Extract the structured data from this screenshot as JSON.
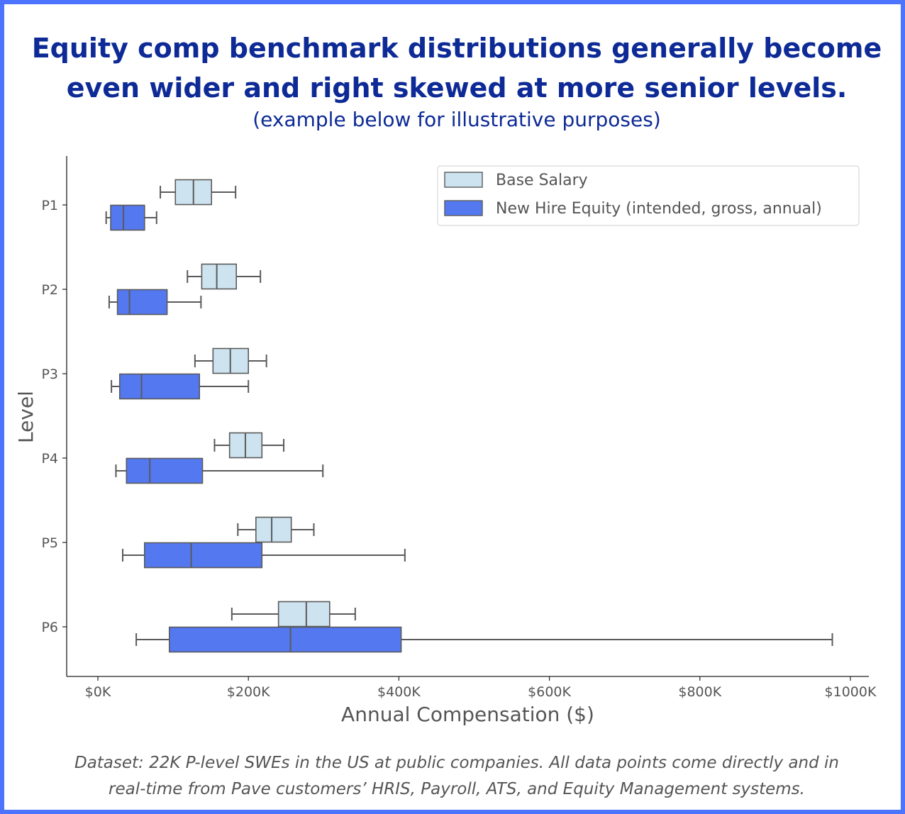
{
  "header": {
    "title_line1": "Equity comp benchmark distributions generally become",
    "title_line2": "even wider and right skewed at more senior levels.",
    "subtitle": "(example below for illustrative purposes)"
  },
  "footnote": {
    "line1": "Dataset: 22K P-level SWEs in the US at public companies. All data points come directly and in",
    "line2": "real-time from Pave customers’ HRIS, Payroll, ATS, and Equity Management systems."
  },
  "chart_data": {
    "type": "boxplot",
    "orientation": "horizontal",
    "xlabel": "Annual Compensation ($)",
    "ylabel": "Level",
    "xlim": [
      -40000,
      1030000
    ],
    "xticks": [
      0,
      200000,
      400000,
      600000,
      800000,
      1000000
    ],
    "xtick_labels": [
      "$0K",
      "$200K",
      "$400K",
      "$600K",
      "$800K",
      "$1000K"
    ],
    "categories": [
      "P1",
      "P2",
      "P3",
      "P4",
      "P5",
      "P6"
    ],
    "legend_position": "top-right",
    "grid": false,
    "series": [
      {
        "name": "Base Salary",
        "color": "#cde3ef",
        "boxes": [
          {
            "whisker_low": 83000,
            "q1": 103000,
            "median": 127000,
            "q3": 151000,
            "whisker_high": 183000
          },
          {
            "whisker_low": 119000,
            "q1": 138000,
            "median": 158000,
            "q3": 184000,
            "whisker_high": 216000
          },
          {
            "whisker_low": 129000,
            "q1": 153000,
            "median": 176000,
            "q3": 200000,
            "whisker_high": 224000
          },
          {
            "whisker_low": 155000,
            "q1": 175000,
            "median": 196000,
            "q3": 218000,
            "whisker_high": 247000
          },
          {
            "whisker_low": 186000,
            "q1": 210000,
            "median": 231000,
            "q3": 257000,
            "whisker_high": 287000
          },
          {
            "whisker_low": 178000,
            "q1": 240000,
            "median": 277000,
            "q3": 308000,
            "whisker_high": 342000
          }
        ]
      },
      {
        "name": "New Hire Equity (intended, gross, annual)",
        "color": "#5478f0",
        "boxes": [
          {
            "whisker_low": 11000,
            "q1": 17000,
            "median": 34000,
            "q3": 62000,
            "whisker_high": 78000
          },
          {
            "whisker_low": 15000,
            "q1": 26000,
            "median": 42000,
            "q3": 92000,
            "whisker_high": 137000
          },
          {
            "whisker_low": 18000,
            "q1": 29000,
            "median": 58000,
            "q3": 135000,
            "whisker_high": 200000
          },
          {
            "whisker_low": 24000,
            "q1": 38000,
            "median": 69000,
            "q3": 139000,
            "whisker_high": 299000
          },
          {
            "whisker_low": 33000,
            "q1": 62000,
            "median": 124000,
            "q3": 218000,
            "whisker_high": 408000
          },
          {
            "whisker_low": 51000,
            "q1": 95000,
            "median": 256000,
            "q3": 403000,
            "whisker_high": 976000
          }
        ]
      }
    ]
  }
}
